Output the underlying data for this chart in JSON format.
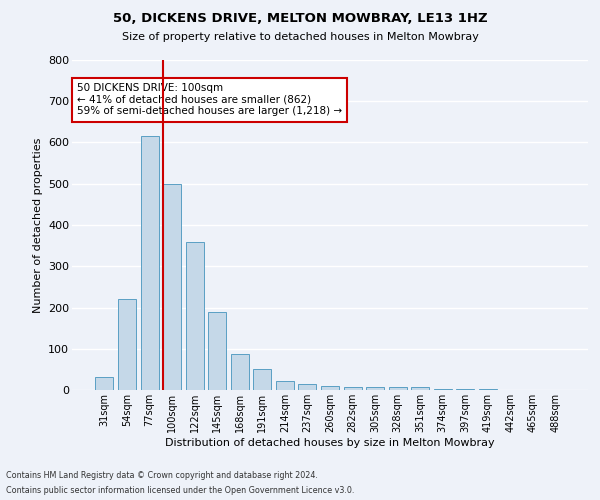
{
  "title1": "50, DICKENS DRIVE, MELTON MOWBRAY, LE13 1HZ",
  "title2": "Size of property relative to detached houses in Melton Mowbray",
  "xlabel": "Distribution of detached houses by size in Melton Mowbray",
  "ylabel": "Number of detached properties",
  "categories": [
    "31sqm",
    "54sqm",
    "77sqm",
    "100sqm",
    "122sqm",
    "145sqm",
    "168sqm",
    "191sqm",
    "214sqm",
    "237sqm",
    "260sqm",
    "282sqm",
    "305sqm",
    "328sqm",
    "351sqm",
    "374sqm",
    "397sqm",
    "419sqm",
    "442sqm",
    "465sqm",
    "488sqm"
  ],
  "values": [
    32,
    220,
    615,
    500,
    360,
    190,
    88,
    52,
    23,
    15,
    10,
    7,
    8,
    8,
    8,
    3,
    3,
    3,
    0,
    0,
    0
  ],
  "bar_color": "#c5d8e8",
  "bar_edge_color": "#5a9fc4",
  "highlight_index": 3,
  "highlight_line_color": "#cc0000",
  "annotation_line1": "50 DICKENS DRIVE: 100sqm",
  "annotation_line2": "← 41% of detached houses are smaller (862)",
  "annotation_line3": "59% of semi-detached houses are larger (1,218) →",
  "annotation_box_color": "#cc0000",
  "ylim": [
    0,
    800
  ],
  "yticks": [
    0,
    100,
    200,
    300,
    400,
    500,
    600,
    700,
    800
  ],
  "footer1": "Contains HM Land Registry data © Crown copyright and database right 2024.",
  "footer2": "Contains public sector information licensed under the Open Government Licence v3.0.",
  "bg_color": "#eef2f9",
  "grid_color": "#ffffff"
}
